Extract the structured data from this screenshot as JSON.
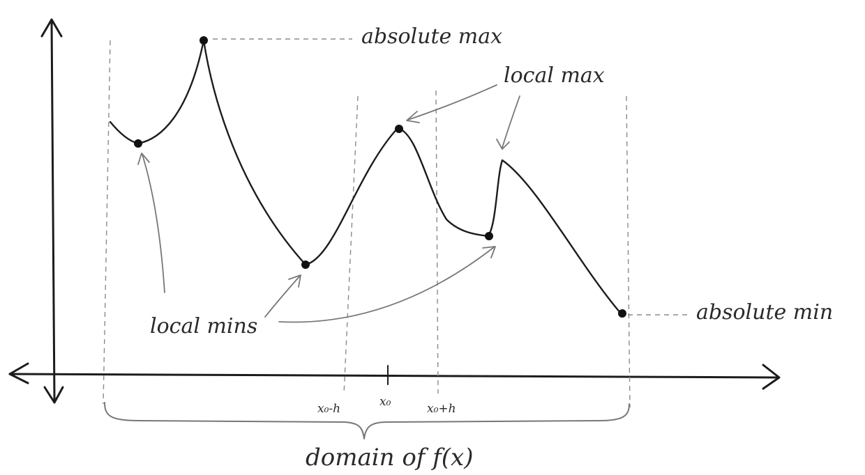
{
  "labels": {
    "absolute_max": "absolute max",
    "local_max": "local max",
    "local_mins": "local mins",
    "absolute_min": "absolute min",
    "x0_minus_h": "x₀-h",
    "x0": "x₀",
    "x0_plus_h": "x₀+h",
    "domain": "domain of f(x)"
  }
}
